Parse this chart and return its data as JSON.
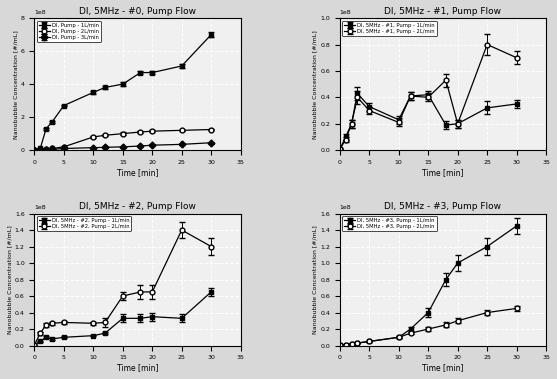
{
  "subplot0": {
    "title": "DI, 5MHz - #0, Pump Flow",
    "legend": [
      "DI, Pump - 1L/min",
      "DI, Pump - 2L/min",
      "DI, Pump - 3L/min"
    ],
    "markers": [
      "s",
      "o",
      "D"
    ],
    "fillstyles": [
      "full",
      "none",
      "full"
    ],
    "colors": [
      "black",
      "black",
      "black"
    ],
    "time": [
      0,
      1,
      2,
      3,
      5,
      10,
      12,
      15,
      18,
      20,
      25,
      30
    ],
    "series1": [
      2000000,
      10000000,
      130000000,
      170000000,
      270000000,
      350000000,
      380000000,
      400000000,
      470000000,
      470000000,
      510000000,
      700000000
    ],
    "series2": [
      2000000,
      5000000,
      8000000,
      10000000,
      20000000,
      80000000,
      90000000,
      100000000,
      110000000,
      115000000,
      120000000,
      125000000
    ],
    "series3": [
      1000000,
      2000000,
      3000000,
      5000000,
      10000000,
      15000000,
      17000000,
      20000000,
      25000000,
      30000000,
      35000000,
      45000000
    ],
    "yerr1": [
      2000000,
      2000000,
      5000000,
      5000000,
      5000000,
      10000000,
      10000000,
      10000000,
      10000000,
      10000000,
      10000000,
      15000000
    ],
    "yerr2": [
      500000,
      500000,
      500000,
      1000000,
      1000000,
      5000000,
      5000000,
      8000000,
      5000000,
      5000000,
      5000000,
      5000000
    ],
    "yerr3": [
      500000,
      500000,
      500000,
      500000,
      500000,
      1000000,
      1000000,
      1000000,
      1000000,
      1000000,
      1000000,
      1000000
    ],
    "ylim": [
      0,
      800000000
    ],
    "yticks": [
      0,
      200000000,
      400000000,
      600000000,
      800000000
    ],
    "xlim": [
      0,
      35
    ],
    "xticks": [
      0,
      5,
      10,
      15,
      20,
      25,
      30,
      35
    ]
  },
  "subplot1": {
    "title": "DI, 5MHz - #1, Pump Flow",
    "legend": [
      "DI, 5MHz - #1, Pump - 1L/min",
      "DI, 5MHz - #1, Pump - 2L/min"
    ],
    "markers": [
      "s",
      "o"
    ],
    "fillstyles": [
      "full",
      "none"
    ],
    "colors": [
      "black",
      "black"
    ],
    "time": [
      0,
      1,
      2,
      3,
      5,
      10,
      12,
      15,
      18,
      20,
      25,
      30
    ],
    "series1": [
      500000,
      10000000,
      20000000,
      43000000,
      33000000,
      23000000,
      41000000,
      42000000,
      19000000,
      20000000,
      32000000,
      35000000
    ],
    "series2": [
      500000,
      8000000,
      20000000,
      40000000,
      30000000,
      21000000,
      41000000,
      40000000,
      53000000,
      20000000,
      80000000,
      70000000
    ],
    "yerr1": [
      100000,
      2000000,
      3000000,
      5000000,
      3000000,
      3000000,
      3000000,
      3000000,
      3000000,
      3000000,
      5000000,
      3000000
    ],
    "yerr2": [
      100000,
      2000000,
      3000000,
      5000000,
      3000000,
      3000000,
      3000000,
      3000000,
      5000000,
      3000000,
      8000000,
      5000000
    ],
    "ylim": [
      0,
      100000000
    ],
    "yticks": [
      0,
      20000000,
      40000000,
      60000000,
      80000000,
      100000000
    ],
    "xlim": [
      0,
      35
    ],
    "xticks": [
      0,
      5,
      10,
      15,
      20,
      25,
      30,
      35
    ]
  },
  "subplot2": {
    "title": "DI, 5MHz - #2, Pump Flow",
    "legend": [
      "DI, 5MHz - #2, Pump - 1L/min",
      "DI, 5MHz - #2, Pump - 2L/min"
    ],
    "markers": [
      "s",
      "o"
    ],
    "fillstyles": [
      "full",
      "none"
    ],
    "colors": [
      "black",
      "black"
    ],
    "time": [
      0,
      1,
      2,
      3,
      5,
      10,
      12,
      15,
      18,
      20,
      25,
      30
    ],
    "series1": [
      500000,
      5000000,
      10000000,
      8000000,
      10000000,
      12000000,
      15000000,
      33000000,
      33000000,
      35000000,
      33000000,
      65000000
    ],
    "series2": [
      500000,
      15000000,
      25000000,
      27000000,
      28000000,
      27000000,
      28000000,
      60000000,
      65000000,
      65000000,
      140000000,
      120000000
    ],
    "yerr1": [
      100000,
      1000000,
      1000000,
      1000000,
      1000000,
      1000000,
      1000000,
      5000000,
      5000000,
      5000000,
      5000000,
      5000000
    ],
    "yerr2": [
      100000,
      2000000,
      2000000,
      2000000,
      2000000,
      2000000,
      5000000,
      5000000,
      8000000,
      8000000,
      10000000,
      10000000
    ],
    "ylim": [
      0,
      160000000
    ],
    "yticks": [
      0,
      20000000,
      40000000,
      60000000,
      80000000,
      100000000,
      120000000,
      140000000,
      160000000
    ],
    "xlim": [
      0,
      35
    ],
    "xticks": [
      0,
      5,
      10,
      15,
      20,
      25,
      30,
      35
    ]
  },
  "subplot3": {
    "title": "DI, 5MHz - #3, Pump Flow",
    "legend": [
      "DI, 5MHz - #3, Pump - 1L/min",
      "DI, 5MHz - #3, Pump - 2L/min"
    ],
    "markers": [
      "s",
      "o"
    ],
    "fillstyles": [
      "full",
      "none"
    ],
    "colors": [
      "black",
      "black"
    ],
    "time": [
      0,
      1,
      2,
      3,
      5,
      10,
      12,
      15,
      18,
      20,
      25,
      30
    ],
    "series1": [
      500000,
      1000000,
      2000000,
      3000000,
      5000000,
      10000000,
      20000000,
      40000000,
      80000000,
      100000000,
      120000000,
      145000000
    ],
    "series2": [
      500000,
      1000000,
      2000000,
      3000000,
      5000000,
      10000000,
      15000000,
      20000000,
      25000000,
      30000000,
      40000000,
      45000000
    ],
    "yerr1": [
      100000,
      100000,
      200000,
      200000,
      500000,
      1000000,
      2000000,
      5000000,
      8000000,
      10000000,
      10000000,
      10000000
    ],
    "yerr2": [
      100000,
      100000,
      200000,
      200000,
      500000,
      1000000,
      1000000,
      2000000,
      3000000,
      3000000,
      3000000,
      3000000
    ],
    "ylim": [
      0,
      160000000
    ],
    "yticks": [
      0,
      20000000,
      40000000,
      60000000,
      80000000,
      100000000,
      120000000,
      140000000,
      160000000
    ],
    "xlim": [
      0,
      35
    ],
    "xticks": [
      0,
      5,
      10,
      15,
      20,
      25,
      30,
      35
    ]
  },
  "ylabel": "Nanobubble Concentration [#/mL]",
  "xlabel": "Time [min]",
  "bg_color": "#f0f0f0",
  "grid_color": "white",
  "fig_bg": "#d8d8d8"
}
